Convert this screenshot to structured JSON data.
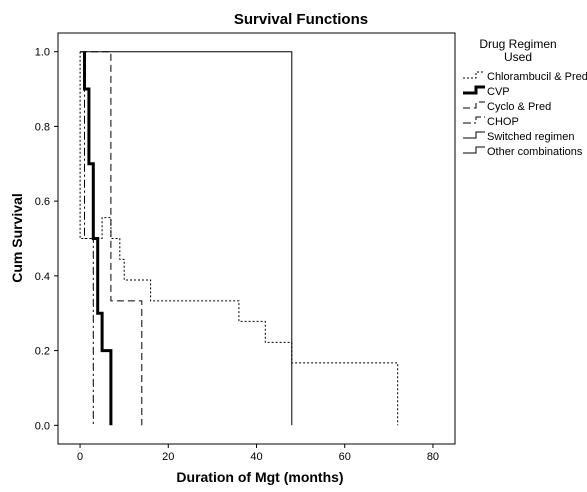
{
  "chart_data": {
    "type": "line",
    "title": "Survival Functions",
    "xlabel": "Duration of Mgt (months)",
    "ylabel": "Cum Survival",
    "xlim": [
      -5,
      85
    ],
    "ylim": [
      -0.05,
      1.05
    ],
    "xticks": [
      0,
      20,
      40,
      60,
      80
    ],
    "yticks": [
      0.0,
      0.2,
      0.4,
      0.6,
      0.8,
      1.0
    ],
    "xtick_labels": [
      "0",
      "20",
      "40",
      "60",
      "80"
    ],
    "ytick_labels": [
      "0.0",
      "0.2",
      "0.4",
      "0.6",
      "0.8",
      "1.0"
    ],
    "grid": false,
    "legend_title": [
      "Drug Regimen",
      "Used"
    ],
    "legend_position": "right",
    "series": [
      {
        "name": "Chlorambucil & Pred",
        "dash": "2,2",
        "width": 1,
        "color": "#000000",
        "x": [
          0,
          0,
          5,
          5,
          7,
          7,
          9,
          9,
          10,
          10,
          16,
          16,
          36,
          36,
          42,
          42,
          48,
          48,
          72,
          72
        ],
        "y": [
          1.0,
          0.5,
          0.5,
          0.556,
          0.556,
          0.5,
          0.5,
          0.444,
          0.444,
          0.389,
          0.389,
          0.333,
          0.333,
          0.278,
          0.278,
          0.222,
          0.222,
          0.167,
          0.167,
          0.0
        ]
      },
      {
        "name": "CVP",
        "dash": "",
        "width": 3,
        "color": "#000000",
        "x": [
          1,
          1,
          2,
          2,
          3,
          3,
          4,
          4,
          5,
          5,
          7,
          7
        ],
        "y": [
          1.0,
          0.9,
          0.9,
          0.7,
          0.7,
          0.5,
          0.5,
          0.3,
          0.3,
          0.2,
          0.2,
          0.0
        ]
      },
      {
        "name": "Cyclo & Pred",
        "dash": "7,4",
        "width": 1,
        "color": "#000000",
        "x": [
          0,
          7,
          7,
          14,
          14
        ],
        "y": [
          1.0,
          1.0,
          0.333,
          0.333,
          0.0
        ]
      },
      {
        "name": "CHOP",
        "dash": "8,3,2,3",
        "width": 1,
        "color": "#000000",
        "x": [
          1,
          1,
          3,
          3
        ],
        "y": [
          1.0,
          0.5,
          0.5,
          0.0
        ]
      },
      {
        "name": "Switched regimen",
        "dash": "",
        "width": 1,
        "color": "#000000",
        "x": [],
        "y": []
      },
      {
        "name": "Other combinations",
        "dash": "",
        "width": 1,
        "color": "#000000",
        "x": [
          0,
          48,
          48
        ],
        "y": [
          1.0,
          1.0,
          0.0
        ]
      }
    ]
  }
}
